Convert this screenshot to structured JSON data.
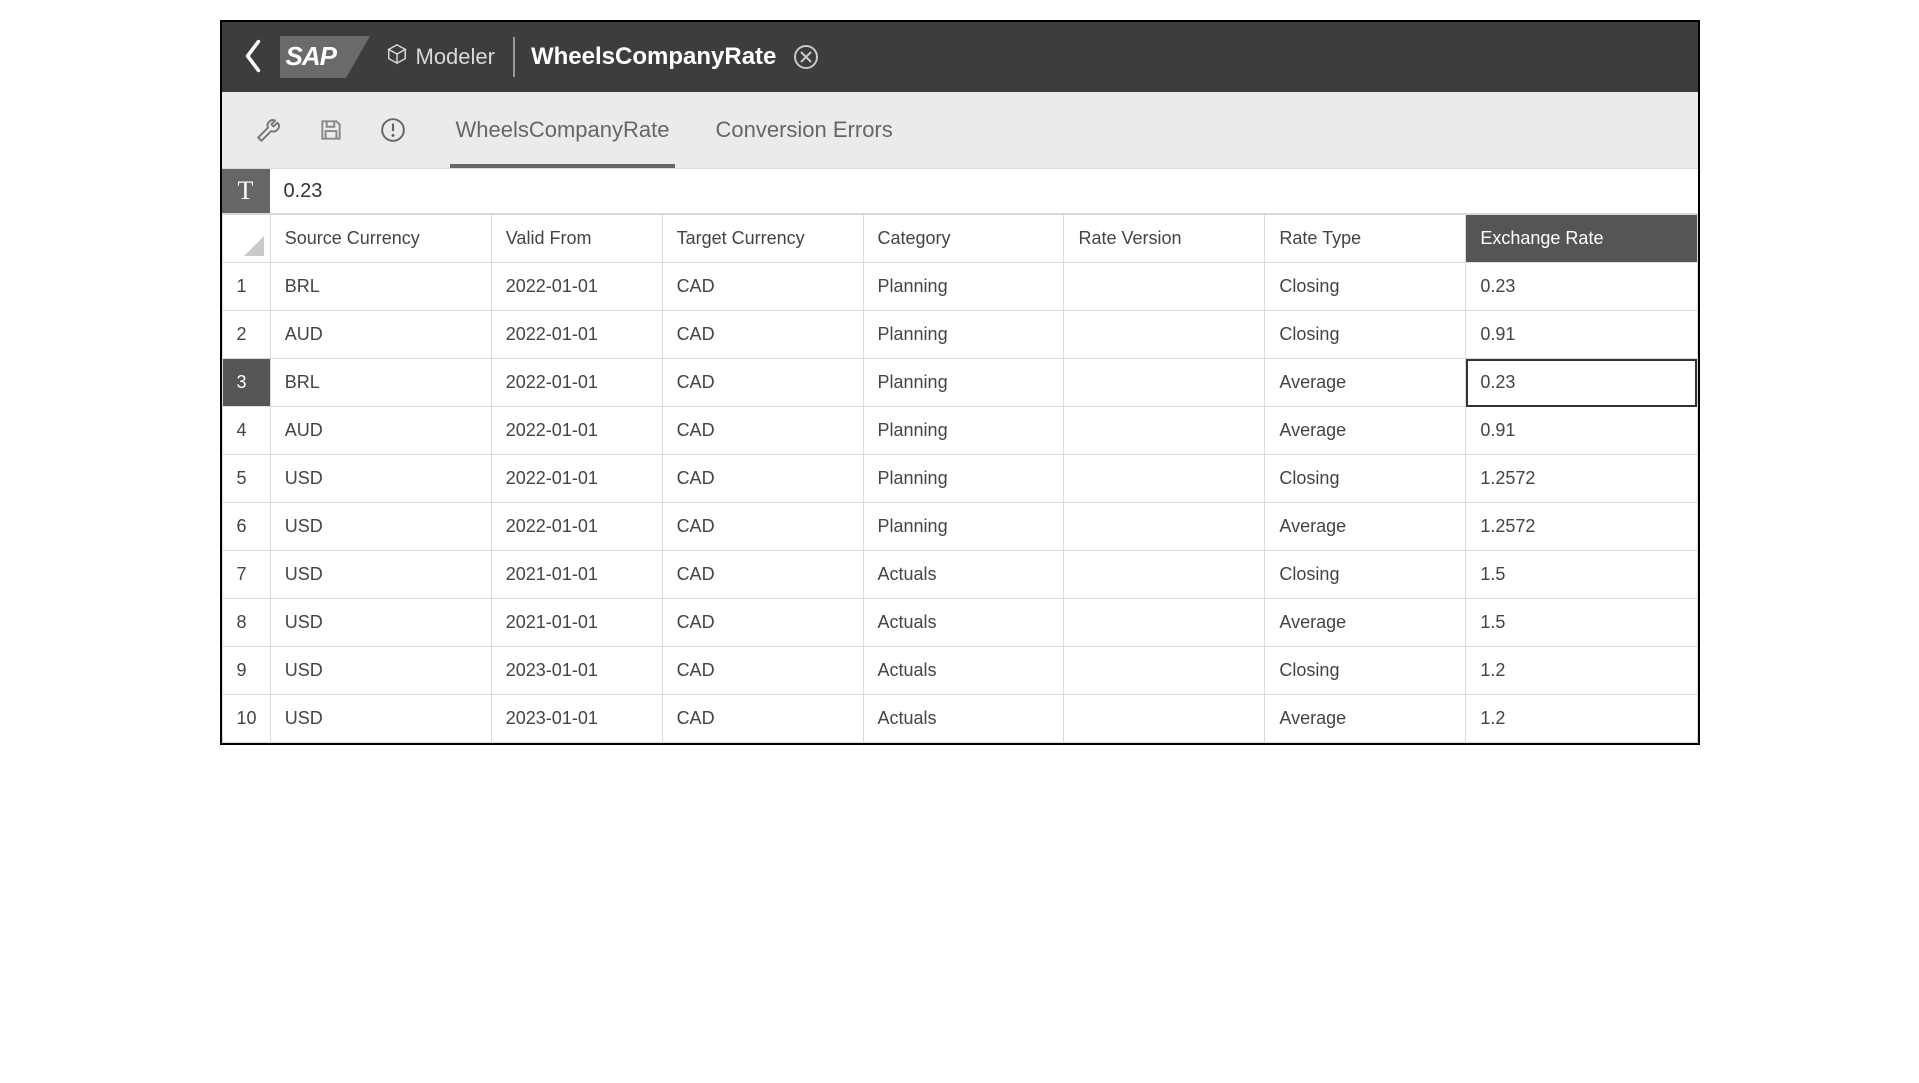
{
  "header": {
    "logo_text": "SAP",
    "modeler_label": "Modeler",
    "title": "WheelsCompanyRate"
  },
  "tabs": {
    "active": "WheelsCompanyRate",
    "items": [
      "WheelsCompanyRate",
      "Conversion Errors"
    ]
  },
  "formula_bar": {
    "marker": "T",
    "value": "0.23"
  },
  "grid": {
    "columns": [
      "Source Currency",
      "Valid From",
      "Target Currency",
      "Category",
      "Rate Version",
      "Rate Type",
      "Exchange Rate"
    ],
    "selected_column_index": 6,
    "selected_row_index": 2,
    "editing_cell": {
      "row": 2,
      "col": 6
    },
    "rows": [
      {
        "source": "BRL",
        "valid_from": "2022-01-01",
        "target": "CAD",
        "category": "Planning",
        "rate_version": "",
        "rate_type": "Closing",
        "exchange_rate": "0.23"
      },
      {
        "source": "AUD",
        "valid_from": "2022-01-01",
        "target": "CAD",
        "category": "Planning",
        "rate_version": "",
        "rate_type": "Closing",
        "exchange_rate": "0.91"
      },
      {
        "source": "BRL",
        "valid_from": "2022-01-01",
        "target": "CAD",
        "category": "Planning",
        "rate_version": "",
        "rate_type": "Average",
        "exchange_rate": "0.23"
      },
      {
        "source": "AUD",
        "valid_from": "2022-01-01",
        "target": "CAD",
        "category": "Planning",
        "rate_version": "",
        "rate_type": "Average",
        "exchange_rate": "0.91"
      },
      {
        "source": "USD",
        "valid_from": "2022-01-01",
        "target": "CAD",
        "category": "Planning",
        "rate_version": "",
        "rate_type": "Closing",
        "exchange_rate": "1.2572"
      },
      {
        "source": "USD",
        "valid_from": "2022-01-01",
        "target": "CAD",
        "category": "Planning",
        "rate_version": "",
        "rate_type": "Average",
        "exchange_rate": "1.2572"
      },
      {
        "source": "USD",
        "valid_from": "2021-01-01",
        "target": "CAD",
        "category": "Actuals",
        "rate_version": "",
        "rate_type": "Closing",
        "exchange_rate": "1.5"
      },
      {
        "source": "USD",
        "valid_from": "2021-01-01",
        "target": "CAD",
        "category": "Actuals",
        "rate_version": "",
        "rate_type": "Average",
        "exchange_rate": "1.5"
      },
      {
        "source": "USD",
        "valid_from": "2023-01-01",
        "target": "CAD",
        "category": "Actuals",
        "rate_version": "",
        "rate_type": "Closing",
        "exchange_rate": "1.2"
      },
      {
        "source": "USD",
        "valid_from": "2023-01-01",
        "target": "CAD",
        "category": "Actuals",
        "rate_version": "",
        "rate_type": "Average",
        "exchange_rate": "1.2"
      }
    ]
  },
  "colors": {
    "header_bg": "#3d3d3d",
    "toolbar_bg": "#ebebeb",
    "selected_bg": "#555555",
    "border": "#d9d9d9"
  }
}
